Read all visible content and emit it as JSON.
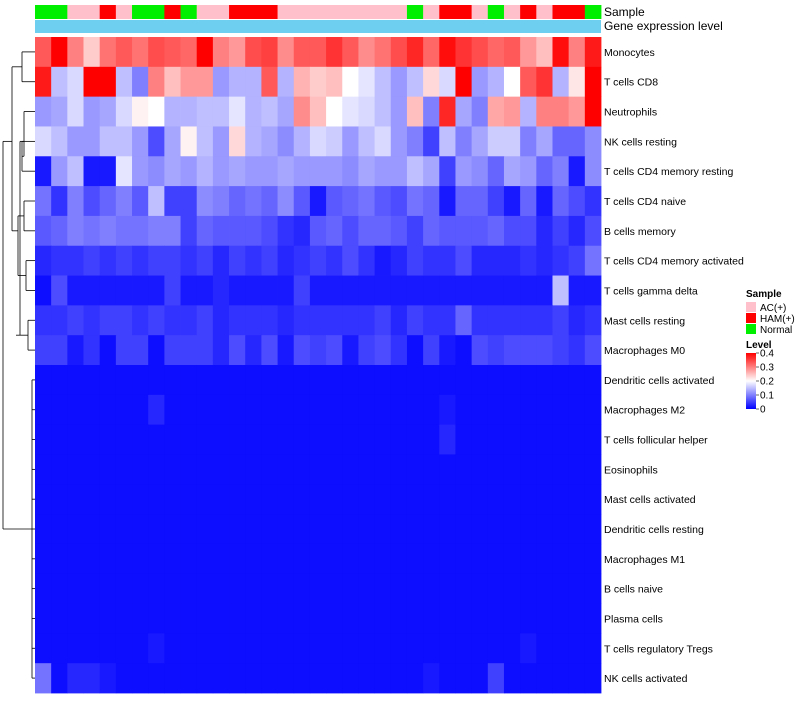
{
  "chart_data": {
    "type": "heatmap",
    "annotation_labels": {
      "sample": "Sample",
      "gene_expression": "Gene expression level"
    },
    "sample_annotation": [
      "Normal",
      "Normal",
      "AC(+)",
      "AC(+)",
      "HAM(+)",
      "AC(+)",
      "Normal",
      "Normal",
      "HAM(+)",
      "Normal",
      "AC(+)",
      "AC(+)",
      "HAM(+)",
      "HAM(+)",
      "HAM(+)",
      "AC(+)",
      "AC(+)",
      "AC(+)",
      "AC(+)",
      "AC(+)",
      "AC(+)",
      "AC(+)",
      "AC(+)",
      "Normal",
      "AC(+)",
      "HAM(+)",
      "HAM(+)",
      "AC(+)",
      "Normal",
      "AC(+)",
      "HAM(+)",
      "AC(+)",
      "HAM(+)",
      "HAM(+)",
      "Normal"
    ],
    "sample_colors": {
      "AC(+)": "#ffc0cb",
      "HAM(+)": "#ff0000",
      "Normal": "#00ee00"
    },
    "gene_expression_color": "#6ecff0",
    "rows": [
      "Monocytes",
      "T cells CD8",
      "Neutrophils",
      "NK cells resting",
      "T cells CD4 memory resting",
      "T cells CD4 naive",
      "B cells memory",
      "T cells CD4 memory activated",
      "T cells gamma delta",
      "Mast cells resting",
      "Macrophages M0",
      "Dendritic cells activated",
      "Macrophages M2",
      "T cells follicular helper",
      "Eosinophils",
      "Mast cells activated",
      "Dendritic cells resting",
      "Macrophages M1",
      "B cells naive",
      "Plasma cells",
      "T cells regulatory  Tregs",
      "NK cells activated"
    ],
    "values": [
      [
        0.33,
        0.4,
        0.3,
        0.24,
        0.31,
        0.33,
        0.31,
        0.34,
        0.33,
        0.32,
        0.4,
        0.3,
        0.28,
        0.34,
        0.35,
        0.29,
        0.33,
        0.33,
        0.36,
        0.33,
        0.29,
        0.31,
        0.34,
        0.37,
        0.32,
        0.39,
        0.36,
        0.34,
        0.32,
        0.33,
        0.28,
        0.25,
        0.39,
        0.3,
        0.38
      ],
      [
        0.38,
        0.15,
        0.17,
        0.4,
        0.4,
        0.15,
        0.1,
        0.3,
        0.25,
        0.28,
        0.28,
        0.12,
        0.14,
        0.14,
        0.33,
        0.14,
        0.26,
        0.24,
        0.25,
        0.2,
        0.18,
        0.15,
        0.12,
        0.15,
        0.23,
        0.17,
        0.4,
        0.12,
        0.14,
        0.2,
        0.33,
        0.36,
        0.14,
        0.22,
        0.4
      ],
      [
        0.12,
        0.13,
        0.17,
        0.12,
        0.13,
        0.17,
        0.21,
        0.2,
        0.14,
        0.14,
        0.15,
        0.15,
        0.18,
        0.14,
        0.15,
        0.13,
        0.29,
        0.25,
        0.2,
        0.18,
        0.17,
        0.15,
        0.12,
        0.25,
        0.1,
        0.37,
        0.13,
        0.1,
        0.27,
        0.28,
        0.14,
        0.3,
        0.3,
        0.28,
        0.4
      ],
      [
        0.17,
        0.15,
        0.12,
        0.12,
        0.15,
        0.15,
        0.12,
        0.06,
        0.13,
        0.21,
        0.15,
        0.12,
        0.23,
        0.14,
        0.13,
        0.11,
        0.14,
        0.17,
        0.16,
        0.12,
        0.15,
        0.17,
        0.12,
        0.1,
        0.05,
        0.15,
        0.1,
        0.13,
        0.16,
        0.16,
        0.1,
        0.13,
        0.08,
        0.08,
        0.11
      ],
      [
        0.02,
        0.12,
        0.15,
        0.02,
        0.02,
        0.18,
        0.12,
        0.11,
        0.13,
        0.12,
        0.14,
        0.12,
        0.13,
        0.12,
        0.12,
        0.13,
        0.12,
        0.12,
        0.12,
        0.11,
        0.13,
        0.12,
        0.12,
        0.15,
        0.13,
        0.05,
        0.12,
        0.11,
        0.08,
        0.13,
        0.12,
        0.08,
        0.1,
        0.02,
        0.11
      ],
      [
        0.09,
        0.04,
        0.1,
        0.06,
        0.08,
        0.1,
        0.07,
        0.15,
        0.05,
        0.05,
        0.11,
        0.1,
        0.08,
        0.09,
        0.08,
        0.11,
        0.07,
        0.02,
        0.07,
        0.08,
        0.09,
        0.07,
        0.06,
        0.09,
        0.08,
        0.02,
        0.08,
        0.08,
        0.05,
        0.02,
        0.08,
        0.02,
        0.08,
        0.06,
        0.04
      ],
      [
        0.07,
        0.08,
        0.1,
        0.09,
        0.1,
        0.09,
        0.09,
        0.1,
        0.1,
        0.05,
        0.08,
        0.07,
        0.07,
        0.07,
        0.06,
        0.04,
        0.03,
        0.07,
        0.08,
        0.06,
        0.08,
        0.08,
        0.07,
        0.05,
        0.08,
        0.07,
        0.07,
        0.07,
        0.08,
        0.06,
        0.06,
        0.03,
        0.05,
        0.03,
        0.06
      ],
      [
        0.03,
        0.04,
        0.04,
        0.05,
        0.04,
        0.05,
        0.04,
        0.05,
        0.05,
        0.04,
        0.05,
        0.03,
        0.05,
        0.04,
        0.05,
        0.03,
        0.04,
        0.05,
        0.04,
        0.06,
        0.04,
        0.02,
        0.03,
        0.05,
        0.04,
        0.04,
        0.06,
        0.03,
        0.03,
        0.03,
        0.04,
        0.03,
        0.04,
        0.05,
        0.09
      ],
      [
        0.01,
        0.06,
        0.02,
        0.02,
        0.02,
        0.02,
        0.02,
        0.02,
        0.05,
        0.02,
        0.02,
        0.03,
        0.02,
        0.02,
        0.02,
        0.02,
        0.05,
        0.02,
        0.02,
        0.02,
        0.02,
        0.02,
        0.02,
        0.02,
        0.02,
        0.02,
        0.02,
        0.02,
        0.02,
        0.02,
        0.02,
        0.02,
        0.15,
        0.02,
        0.02
      ],
      [
        0.04,
        0.04,
        0.05,
        0.04,
        0.05,
        0.05,
        0.04,
        0.05,
        0.04,
        0.04,
        0.05,
        0.03,
        0.04,
        0.04,
        0.04,
        0.03,
        0.04,
        0.04,
        0.04,
        0.04,
        0.04,
        0.05,
        0.03,
        0.05,
        0.04,
        0.04,
        0.08,
        0.04,
        0.04,
        0.04,
        0.04,
        0.04,
        0.05,
        0.03,
        0.04
      ],
      [
        0.05,
        0.05,
        0.02,
        0.04,
        0.01,
        0.05,
        0.05,
        0.01,
        0.05,
        0.05,
        0.05,
        0.03,
        0.06,
        0.03,
        0.06,
        0.02,
        0.06,
        0.05,
        0.06,
        0.02,
        0.05,
        0.06,
        0.04,
        0.01,
        0.05,
        0.02,
        0.01,
        0.06,
        0.05,
        0.06,
        0.06,
        0.06,
        0.05,
        0.04,
        0.06
      ],
      [
        0.01,
        0.01,
        0.01,
        0.01,
        0.01,
        0.01,
        0.01,
        0.01,
        0.01,
        0.01,
        0.01,
        0.01,
        0.01,
        0.01,
        0.01,
        0.01,
        0.01,
        0.01,
        0.01,
        0.01,
        0.01,
        0.01,
        0.01,
        0.01,
        0.01,
        0.01,
        0.01,
        0.01,
        0.01,
        0.01,
        0.01,
        0.01,
        0.01,
        0.01,
        0.01
      ],
      [
        0.01,
        0.01,
        0.01,
        0.01,
        0.01,
        0.01,
        0.01,
        0.03,
        0.01,
        0.01,
        0.01,
        0.01,
        0.01,
        0.01,
        0.01,
        0.01,
        0.01,
        0.01,
        0.01,
        0.01,
        0.01,
        0.01,
        0.01,
        0.01,
        0.01,
        0.02,
        0.01,
        0.01,
        0.01,
        0.01,
        0.01,
        0.01,
        0.01,
        0.01,
        0.01
      ],
      [
        0.01,
        0.01,
        0.01,
        0.01,
        0.01,
        0.01,
        0.01,
        0.01,
        0.01,
        0.01,
        0.01,
        0.01,
        0.01,
        0.01,
        0.01,
        0.01,
        0.01,
        0.01,
        0.01,
        0.01,
        0.01,
        0.01,
        0.01,
        0.01,
        0.01,
        0.03,
        0.01,
        0.01,
        0.01,
        0.01,
        0.01,
        0.01,
        0.01,
        0.01,
        0.01
      ],
      [
        0.01,
        0.01,
        0.01,
        0.01,
        0.01,
        0.01,
        0.01,
        0.01,
        0.01,
        0.01,
        0.01,
        0.01,
        0.01,
        0.01,
        0.01,
        0.01,
        0.01,
        0.01,
        0.01,
        0.01,
        0.01,
        0.01,
        0.01,
        0.01,
        0.01,
        0.01,
        0.01,
        0.01,
        0.01,
        0.01,
        0.01,
        0.01,
        0.01,
        0.01,
        0.01
      ],
      [
        0.01,
        0.01,
        0.01,
        0.01,
        0.01,
        0.01,
        0.01,
        0.01,
        0.01,
        0.01,
        0.01,
        0.01,
        0.01,
        0.01,
        0.01,
        0.01,
        0.01,
        0.01,
        0.01,
        0.01,
        0.01,
        0.01,
        0.01,
        0.01,
        0.01,
        0.01,
        0.01,
        0.01,
        0.01,
        0.01,
        0.01,
        0.01,
        0.01,
        0.01,
        0.01
      ],
      [
        0.01,
        0.01,
        0.01,
        0.01,
        0.01,
        0.01,
        0.01,
        0.01,
        0.01,
        0.01,
        0.01,
        0.01,
        0.01,
        0.01,
        0.01,
        0.01,
        0.01,
        0.01,
        0.01,
        0.01,
        0.01,
        0.01,
        0.01,
        0.01,
        0.01,
        0.01,
        0.01,
        0.01,
        0.01,
        0.01,
        0.01,
        0.01,
        0.01,
        0.01,
        0.01
      ],
      [
        0.01,
        0.01,
        0.01,
        0.01,
        0.01,
        0.01,
        0.01,
        0.01,
        0.01,
        0.01,
        0.01,
        0.01,
        0.01,
        0.01,
        0.01,
        0.01,
        0.01,
        0.01,
        0.01,
        0.01,
        0.01,
        0.01,
        0.01,
        0.01,
        0.01,
        0.01,
        0.01,
        0.01,
        0.01,
        0.01,
        0.01,
        0.01,
        0.01,
        0.01,
        0.01
      ],
      [
        0.01,
        0.01,
        0.01,
        0.01,
        0.01,
        0.01,
        0.01,
        0.01,
        0.01,
        0.01,
        0.01,
        0.01,
        0.01,
        0.01,
        0.01,
        0.01,
        0.01,
        0.01,
        0.01,
        0.01,
        0.01,
        0.01,
        0.01,
        0.01,
        0.01,
        0.01,
        0.01,
        0.01,
        0.01,
        0.01,
        0.01,
        0.01,
        0.01,
        0.01,
        0.01
      ],
      [
        0.01,
        0.01,
        0.01,
        0.01,
        0.01,
        0.01,
        0.01,
        0.01,
        0.01,
        0.01,
        0.01,
        0.01,
        0.01,
        0.01,
        0.01,
        0.01,
        0.01,
        0.01,
        0.01,
        0.01,
        0.01,
        0.01,
        0.01,
        0.01,
        0.01,
        0.01,
        0.01,
        0.01,
        0.01,
        0.01,
        0.01,
        0.01,
        0.01,
        0.01,
        0.01
      ],
      [
        0.01,
        0.01,
        0.01,
        0.01,
        0.01,
        0.01,
        0.01,
        0.02,
        0.01,
        0.01,
        0.01,
        0.01,
        0.01,
        0.01,
        0.01,
        0.01,
        0.01,
        0.01,
        0.01,
        0.01,
        0.01,
        0.01,
        0.01,
        0.01,
        0.01,
        0.01,
        0.01,
        0.01,
        0.01,
        0.01,
        0.02,
        0.01,
        0.01,
        0.01,
        0.01
      ],
      [
        0.09,
        0.01,
        0.03,
        0.03,
        0.02,
        0.01,
        0.01,
        0.01,
        0.01,
        0.01,
        0.01,
        0.01,
        0.01,
        0.01,
        0.01,
        0.01,
        0.01,
        0.01,
        0.01,
        0.01,
        0.01,
        0.01,
        0.01,
        0.01,
        0.02,
        0.01,
        0.01,
        0.01,
        0.05,
        0.01,
        0.01,
        0.01,
        0.01,
        0.01,
        0.01
      ]
    ],
    "color_scale": {
      "min": 0,
      "mid": 0.2,
      "max": 0.4,
      "low": "#0000ff",
      "mid_color": "#ffffff",
      "high": "#ff0000"
    },
    "legend": {
      "sample_title": "Sample",
      "sample_entries": [
        "AC(+)",
        "HAM(+)",
        "Normal"
      ],
      "level_title": "Level",
      "level_ticks": [
        "0.4",
        "0.3",
        "0.2",
        "0.1",
        "0"
      ],
      "placement": "right"
    },
    "row_dendrogram": true
  }
}
